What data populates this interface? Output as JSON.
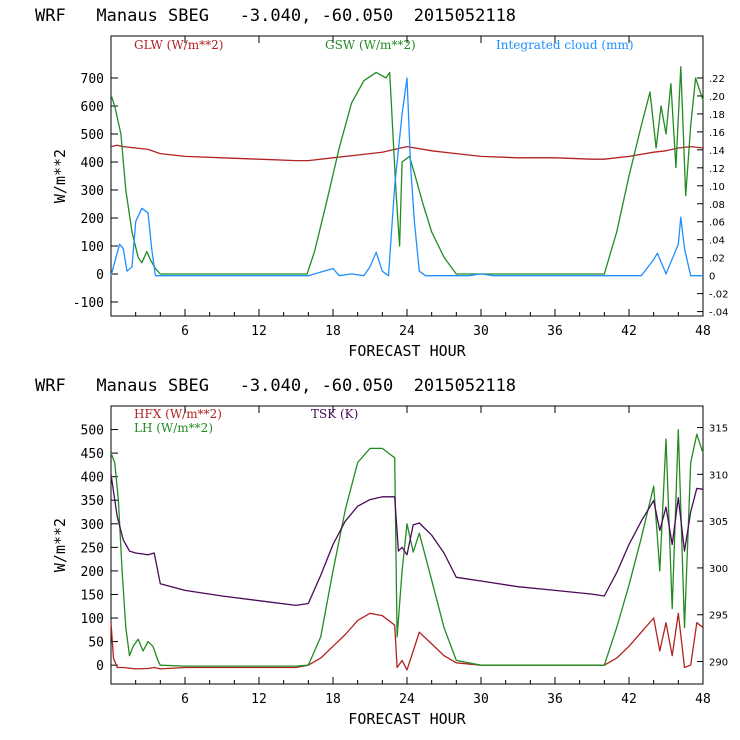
{
  "charts": [
    {
      "title": "WRF   Manaus SBEG   -3.040, -60.050  2015052118",
      "xlabel": "FORECAST HOUR",
      "ylabel": "W/m**2"
    },
    {
      "title": "WRF   Manaus SBEG   -3.040, -60.050  2015052118",
      "xlabel": "FORECAST HOUR",
      "ylabel": "W/m**2"
    }
  ],
  "chart_data": [
    {
      "type": "line",
      "title": "WRF   Manaus SBEG   -3.040, -60.050  2015052118",
      "xlabel": "FORECAST HOUR",
      "ylabel": "W/m**2",
      "xlim": [
        0,
        48
      ],
      "ylim": [
        -150,
        850
      ],
      "xticks": [
        "6",
        "12",
        "18",
        "24",
        "30",
        "36",
        "42",
        "48"
      ],
      "yticks": [
        "-100",
        "0",
        "100",
        "200",
        "300",
        "400",
        "500",
        "600",
        "700"
      ],
      "y2lim": [
        -0.0449,
        0.2667
      ],
      "y2ticks": [
        "-.04",
        "-.02",
        "0",
        ".02",
        ".04",
        ".06",
        ".08",
        ".10",
        ".12",
        ".14",
        ".16",
        ".18",
        ".20",
        ".22"
      ],
      "series": [
        {
          "name": "GLW (W/m**2)",
          "color": "#b22222",
          "axis": "left",
          "x": [
            0,
            0.5,
            1,
            2,
            3,
            4,
            6,
            9,
            12,
            15,
            16,
            18,
            20,
            22,
            23,
            24,
            26,
            28,
            30,
            33,
            36,
            39,
            40,
            42,
            44,
            45,
            46,
            47,
            48
          ],
          "y": [
            455,
            460,
            455,
            450,
            445,
            430,
            420,
            415,
            410,
            405,
            405,
            415,
            425,
            435,
            445,
            455,
            440,
            430,
            420,
            415,
            415,
            410,
            410,
            420,
            435,
            440,
            450,
            455,
            450
          ]
        },
        {
          "name": "GSW (W/m**2)",
          "color": "#228b22",
          "axis": "left",
          "x": [
            0,
            0.3,
            0.8,
            1.2,
            1.7,
            2.2,
            2.5,
            2.9,
            3.2,
            3.6,
            4,
            15.9,
            16.5,
            17.5,
            18.5,
            19.5,
            20.5,
            21.5,
            22.3,
            22.6,
            23.1,
            23.4,
            23.6,
            24.2,
            24.6,
            25.3,
            26,
            27,
            28,
            40,
            41,
            42,
            43,
            43.7,
            44.2,
            44.6,
            45,
            45.4,
            45.8,
            46.2,
            46.6,
            47,
            47.4,
            48
          ],
          "y": [
            640,
            600,
            500,
            300,
            150,
            60,
            40,
            80,
            50,
            20,
            0,
            0,
            80,
            260,
            450,
            610,
            690,
            720,
            700,
            720,
            300,
            100,
            400,
            420,
            360,
            250,
            150,
            60,
            0,
            0,
            150,
            350,
            530,
            650,
            450,
            600,
            500,
            680,
            380,
            740,
            280,
            530,
            700,
            620
          ]
        },
        {
          "name": "Integrated cloud (mm)",
          "color": "#1e90ff",
          "axis": "right",
          "x": [
            0,
            0.3,
            0.7,
            1,
            1.3,
            1.7,
            2,
            2.5,
            3,
            3.3,
            3.6,
            4,
            16,
            18,
            18.5,
            19.5,
            20.5,
            21,
            21.5,
            22,
            22.5,
            23,
            23.3,
            23.6,
            24,
            24.3,
            24.6,
            25,
            25.5,
            26,
            29,
            30,
            31,
            32,
            43,
            44,
            44.3,
            45,
            46,
            46.2,
            46.5,
            47,
            48
          ],
          "y": [
            0.0,
            0.015,
            0.035,
            0.03,
            0.005,
            0.01,
            0.06,
            0.075,
            0.07,
            0.03,
            0.0,
            0.0,
            0.0,
            0.008,
            0.0,
            0.002,
            0.0,
            0.01,
            0.026,
            0.005,
            0.0,
            0.1,
            0.14,
            0.18,
            0.22,
            0.12,
            0.06,
            0.005,
            0.0,
            0.0,
            0.0,
            0.002,
            0.0,
            0.0,
            0.0,
            0.018,
            0.025,
            0.002,
            0.035,
            0.065,
            0.03,
            0.0,
            0.0
          ]
        }
      ]
    },
    {
      "type": "line",
      "title": "WRF   Manaus SBEG   -3.040, -60.050  2015052118",
      "xlabel": "FORECAST HOUR",
      "ylabel": "W/m**2",
      "xlim": [
        0,
        48
      ],
      "ylim": [
        -40,
        550
      ],
      "xticks": [
        "6",
        "12",
        "18",
        "24",
        "30",
        "36",
        "42",
        "48"
      ],
      "yticks": [
        "0",
        "50",
        "100",
        "150",
        "200",
        "250",
        "300",
        "350",
        "400",
        "450",
        "500"
      ],
      "y2lim": [
        287.6,
        317.3
      ],
      "y2ticks": [
        "290",
        "295",
        "300",
        "305",
        "310",
        "315"
      ],
      "series": [
        {
          "name": "HFX (W/m**2)",
          "color": "#b22222",
          "axis": "left",
          "x": [
            0,
            0.2,
            0.5,
            1,
            2,
            3,
            3.5,
            4,
            6,
            9,
            12,
            15,
            16,
            17,
            18,
            19,
            20,
            21,
            22,
            23,
            23.2,
            23.6,
            24,
            24.5,
            25,
            26,
            27,
            28,
            30,
            33,
            36,
            39,
            40,
            41,
            42,
            43,
            44,
            44.5,
            45,
            45.5,
            46,
            46.5,
            47,
            47.5,
            48
          ],
          "y": [
            90,
            15,
            -5,
            -5,
            -8,
            -7,
            -5,
            -8,
            -5,
            -5,
            -5,
            -5,
            0,
            15,
            40,
            65,
            95,
            110,
            105,
            85,
            -5,
            10,
            -10,
            30,
            70,
            45,
            20,
            5,
            0,
            0,
            0,
            0,
            0,
            15,
            40,
            70,
            100,
            30,
            90,
            20,
            110,
            -5,
            0,
            90,
            80
          ]
        },
        {
          "name": "LH (W/m**2)",
          "color": "#228b22",
          "axis": "left",
          "x": [
            0,
            0.3,
            0.6,
            0.9,
            1.2,
            1.5,
            1.8,
            2.2,
            2.6,
            3,
            3.4,
            3.8,
            4,
            6,
            9,
            12,
            15,
            16,
            17,
            18,
            19,
            20,
            21,
            22,
            22.5,
            23,
            23.2,
            23.6,
            24,
            24.5,
            25,
            26,
            27,
            28,
            30,
            33,
            36,
            39,
            40,
            41,
            42,
            43,
            44,
            44.5,
            45,
            45.5,
            46,
            46.5,
            47,
            47.5,
            48
          ],
          "y": [
            450,
            430,
            350,
            200,
            80,
            20,
            40,
            55,
            30,
            50,
            40,
            10,
            0,
            -2,
            -2,
            -2,
            -2,
            0,
            60,
            200,
            330,
            430,
            460,
            460,
            450,
            440,
            60,
            200,
            300,
            240,
            280,
            180,
            80,
            10,
            0,
            0,
            0,
            0,
            0,
            80,
            170,
            270,
            380,
            200,
            480,
            120,
            500,
            80,
            430,
            490,
            450
          ]
        },
        {
          "name": "TSK (K)",
          "color": "#4b0a5a",
          "axis": "right",
          "x": [
            0,
            0.5,
            1,
            1.5,
            2,
            2.5,
            3,
            3.5,
            4,
            6,
            9,
            12,
            15,
            16,
            17,
            18,
            19,
            20,
            21,
            22,
            23,
            23.3,
            23.6,
            24,
            24.5,
            25,
            26,
            27,
            28,
            30,
            33,
            36,
            39,
            40,
            41,
            42,
            43,
            44,
            44.5,
            45,
            45.5,
            46,
            46.5,
            47,
            47.5,
            48
          ],
          "y": [
            310,
            305.5,
            303,
            301.8,
            301.6,
            301.5,
            301.4,
            301.6,
            298.3,
            297.6,
            297.0,
            296.5,
            296.0,
            296.2,
            299.2,
            302.5,
            305.0,
            306.6,
            307.3,
            307.6,
            307.6,
            301.8,
            302.2,
            301.4,
            304.6,
            304.8,
            303.5,
            301.6,
            299.0,
            298.6,
            298.0,
            297.6,
            297.2,
            297.0,
            299.5,
            302.5,
            305.0,
            307.2,
            304.0,
            306.5,
            302.5,
            307.5,
            301.8,
            306.0,
            308.5,
            308.4
          ]
        }
      ]
    }
  ]
}
